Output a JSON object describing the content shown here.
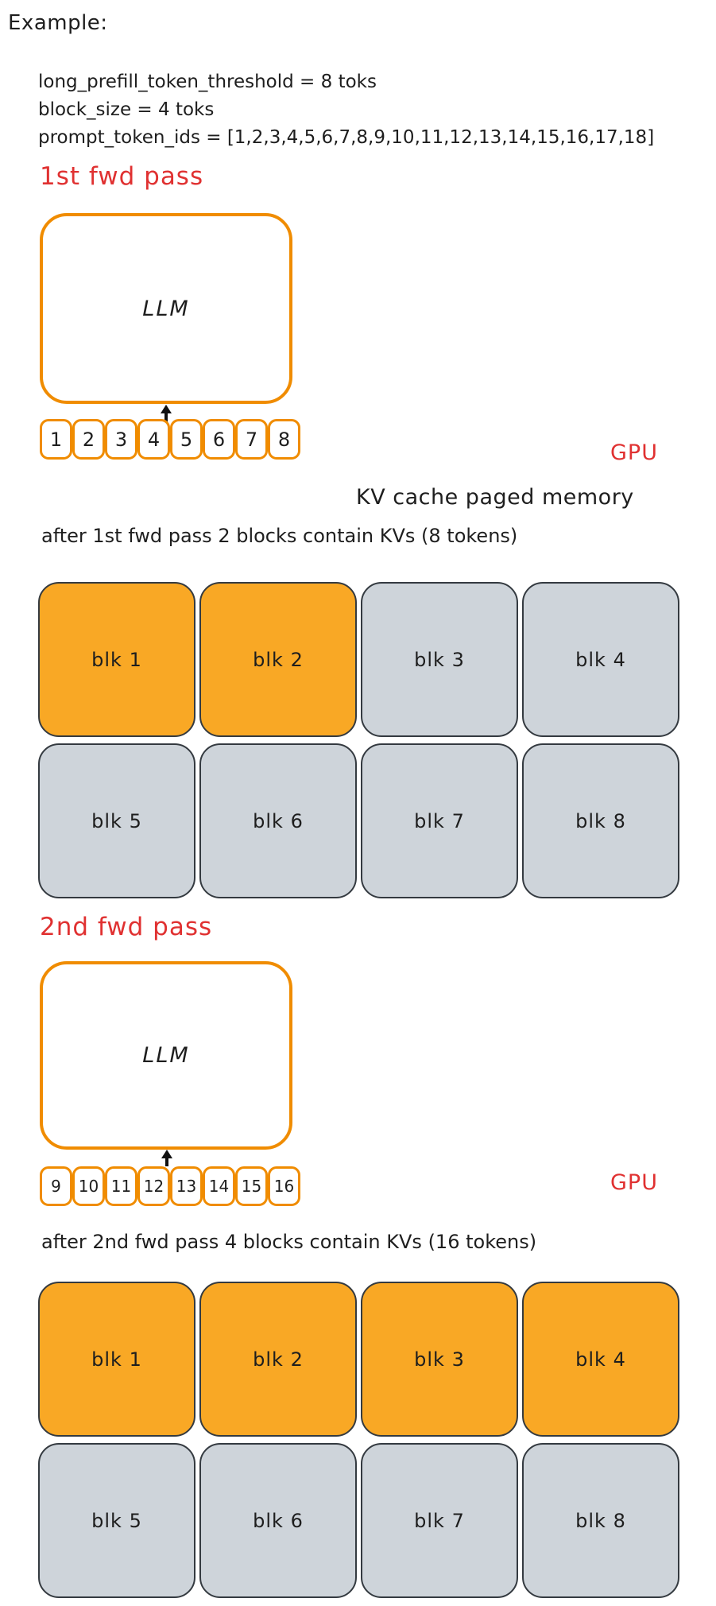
{
  "colors": {
    "stroke_orange": "#f08c00",
    "block_cached_fill": "#f9a825",
    "block_free_fill": "#ced4da",
    "block_stroke": "#343a40",
    "red_accent": "#e03131",
    "ink": "#1e1e1e"
  },
  "example": {
    "label": "Example:",
    "lines": [
      "long_prefill_token_threshold = 8 toks",
      "block_size = 4 toks",
      "prompt_token_ids = [1,2,3,4,5,6,7,8,9,10,11,12,13,14,15,16,17,18]"
    ]
  },
  "pass1": {
    "title": "1st fwd pass",
    "llm_label": "LLM",
    "tokens": [
      "1",
      "2",
      "3",
      "4",
      "5",
      "6",
      "7",
      "8"
    ],
    "gpu_label": "GPU"
  },
  "kv_cache": {
    "heading": "KV cache paged memory",
    "after_pass1": "after 1st fwd pass 2 blocks contain KVs (8 tokens)",
    "after_pass2": "after 2nd fwd pass 4 blocks contain KVs (16 tokens)"
  },
  "grid1": {
    "blocks": [
      {
        "label": "blk 1",
        "state": "cached"
      },
      {
        "label": "blk 2",
        "state": "cached"
      },
      {
        "label": "blk 3",
        "state": "free"
      },
      {
        "label": "blk 4",
        "state": "free"
      },
      {
        "label": "blk 5",
        "state": "free"
      },
      {
        "label": "blk 6",
        "state": "free"
      },
      {
        "label": "blk 7",
        "state": "free"
      },
      {
        "label": "blk 8",
        "state": "free"
      }
    ]
  },
  "pass2": {
    "title": "2nd fwd pass",
    "llm_label": "LLM",
    "tokens": [
      "9",
      "10",
      "11",
      "12",
      "13",
      "14",
      "15",
      "16"
    ],
    "gpu_label": "GPU"
  },
  "grid2": {
    "blocks": [
      {
        "label": "blk 1",
        "state": "cached"
      },
      {
        "label": "blk 2",
        "state": "cached"
      },
      {
        "label": "blk 3",
        "state": "cached"
      },
      {
        "label": "blk 4",
        "state": "cached"
      },
      {
        "label": "blk 5",
        "state": "free"
      },
      {
        "label": "blk 6",
        "state": "free"
      },
      {
        "label": "blk 7",
        "state": "free"
      },
      {
        "label": "blk 8",
        "state": "free"
      }
    ]
  }
}
